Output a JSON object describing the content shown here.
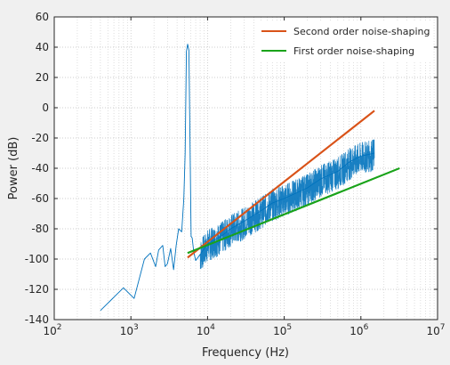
{
  "chart_data": {
    "type": "line",
    "title": "",
    "xlabel": "Frequency (Hz)",
    "ylabel": "Power (dB)",
    "xscale": "log",
    "xlim": [
      100,
      10000000
    ],
    "ylim": [
      -140,
      60
    ],
    "x_ticks": [
      "10^2",
      "10^3",
      "10^4",
      "10^5",
      "10^6",
      "10^7"
    ],
    "y_ticks": [
      -140,
      -120,
      -100,
      -80,
      -60,
      -40,
      -20,
      0,
      20,
      40,
      60
    ],
    "grid": true,
    "minor_grid": true,
    "legend_position": "top-right",
    "series": [
      {
        "name": "Second order noise-shaping",
        "color": "#d95319",
        "x": [
          5500,
          1500000
        ],
        "y": [
          -99,
          -2
        ]
      },
      {
        "name": "First order noise-shaping",
        "color": "#1aa31a",
        "x": [
          5500,
          3200000
        ],
        "y": [
          -96,
          -40
        ]
      },
      {
        "name": "",
        "color": "#0072bd",
        "x": [
          400,
          800,
          1100,
          1500,
          1800,
          2100,
          2300,
          2600,
          2800,
          3000,
          3300,
          3600,
          3900,
          4200,
          4600,
          4900,
          5100,
          5300,
          5500,
          5700,
          5900,
          6100,
          6300,
          6600,
          7000,
          8000,
          10000,
          15000,
          20000,
          30000,
          50000,
          70000,
          100000,
          200000,
          300000,
          500000,
          700000,
          1000000,
          1500000
        ],
        "y": [
          -134,
          -119,
          -126,
          -100,
          -96,
          -105,
          -94,
          -91,
          -105,
          -103,
          -93,
          -107,
          -91,
          -80,
          -82,
          -60,
          -30,
          37,
          42,
          38,
          -20,
          -85,
          -86,
          -95,
          -101,
          -97,
          -90,
          -85,
          -80,
          -75,
          -68,
          -63,
          -60,
          -53,
          -47,
          -42,
          -36,
          -32,
          -30
        ]
      }
    ]
  }
}
